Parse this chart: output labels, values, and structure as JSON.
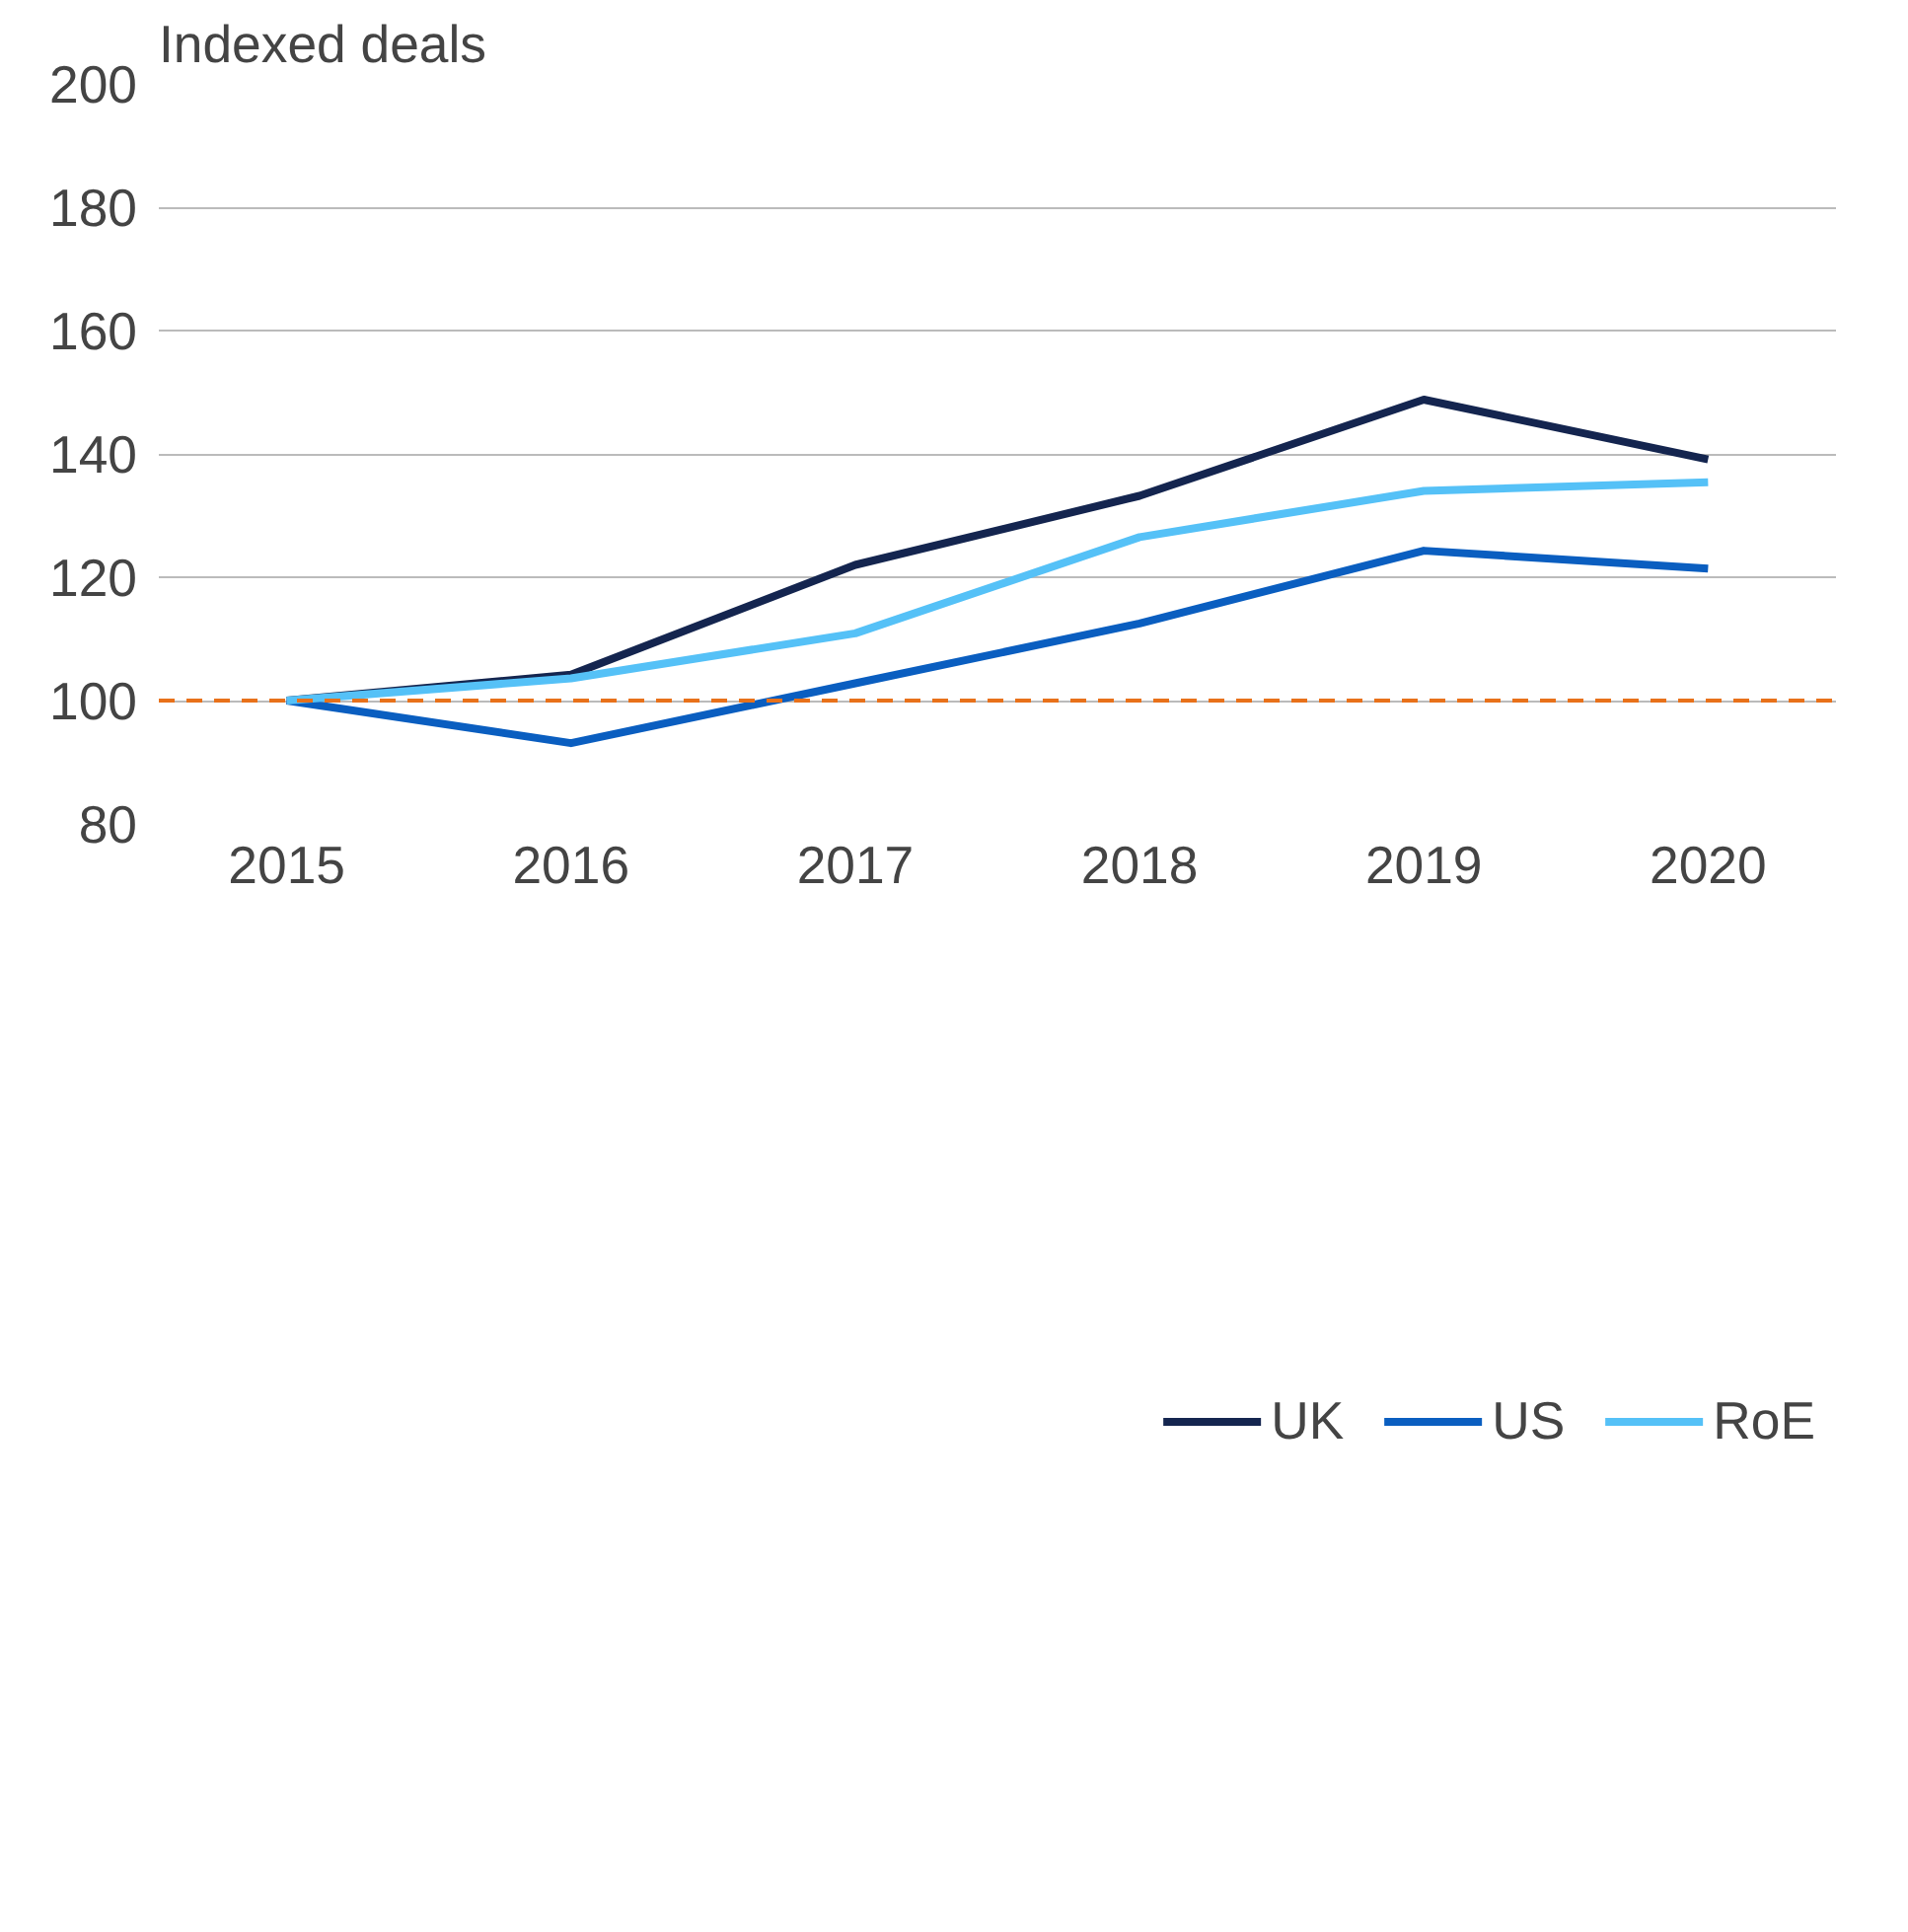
{
  "chart_data": {
    "type": "line",
    "ylabel": "Indexed deals",
    "x": [
      2015,
      2016,
      2017,
      2018,
      2019,
      2020
    ],
    "series": [
      {
        "name": "UK",
        "color": "#14254f",
        "values": [
          100,
          104.2,
          122,
          133.2,
          148.8,
          139.1
        ]
      },
      {
        "name": "US",
        "color": "#0a5ec0",
        "values": [
          100,
          93.1,
          102.8,
          112.5,
          124.3,
          121.4
        ]
      },
      {
        "name": "RoE",
        "color": "#55c1f7",
        "values": [
          100,
          103.6,
          110.9,
          126.5,
          134,
          135.4
        ]
      }
    ],
    "xlim": [
      2014.55,
      2020.45
    ],
    "xticks": [
      2015,
      2016,
      2017,
      2018,
      2019,
      2020
    ],
    "ylim": [
      80,
      200
    ],
    "yticks": [
      80,
      100,
      120,
      140,
      160,
      180,
      200
    ],
    "ref_lines": [
      {
        "axis": "y",
        "value": 100,
        "color": "#e8711a",
        "line_style": "dashed"
      }
    ],
    "grid": "y",
    "legend": "bottom",
    "marker": "none",
    "line_style": "solid"
  }
}
